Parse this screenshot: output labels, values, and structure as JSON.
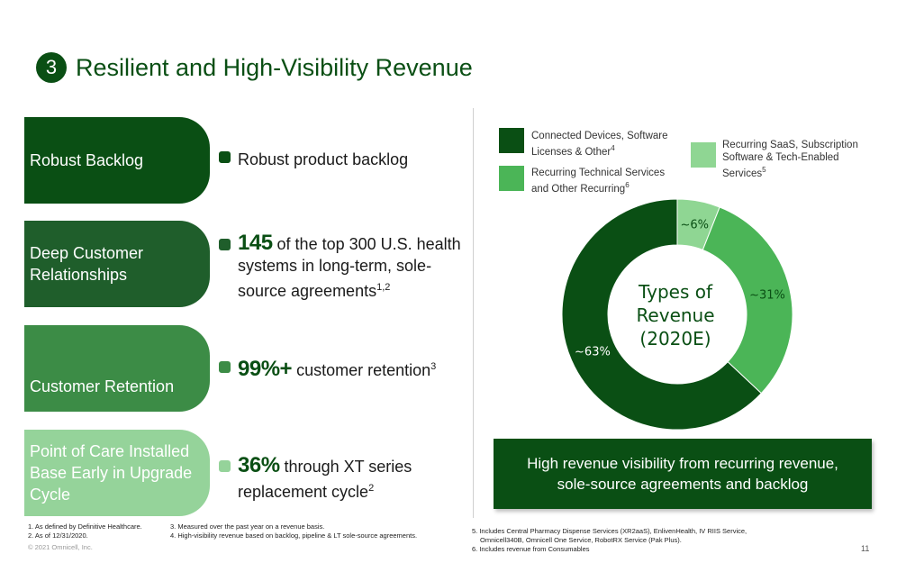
{
  "header": {
    "number": "3",
    "title": "Resilient and High-Visibility Revenue"
  },
  "left_items": [
    {
      "pill_label": "Robust Backlog",
      "pill_color": "#0a4f14",
      "big": "",
      "text": "Robust product backlog",
      "sup": ""
    },
    {
      "pill_label": "Deep Customer Relationships",
      "pill_color": "#1f5e2b",
      "big": "145",
      "text": " of the top 300 U.S. health systems in long-term, sole-source agreements",
      "sup": "1,2"
    },
    {
      "pill_label": "Customer Retention",
      "pill_color": "#3c8c46",
      "big": "99%+",
      "text": " customer retention",
      "sup": "3"
    },
    {
      "pill_label": "Point of Care Installed Base Early in Upgrade Cycle",
      "pill_color": "#95d39a",
      "big": "36%",
      "text": " through XT series replacement cycle",
      "sup": "2"
    }
  ],
  "legend": [
    {
      "label": "Connected Devices, Software Licenses & Other",
      "sup": "4",
      "color": "#0a4f14"
    },
    {
      "label": "Recurring Technical Services and Other Recurring",
      "sup": "6",
      "color": "#4bb557"
    },
    {
      "label": "Recurring SaaS, Subscription Software & Tech-Enabled Services",
      "sup": "5",
      "color": "#8fd693"
    }
  ],
  "chart_data": {
    "type": "pie",
    "title": "Types of Revenue (2020E)",
    "slices": [
      {
        "name": "Recurring SaaS, Subscription Software & Tech-Enabled Services",
        "value": 6,
        "label": "~6%",
        "color": "#8fd693"
      },
      {
        "name": "Recurring Technical Services and Other Recurring",
        "value": 31,
        "label": "~31%",
        "color": "#4bb557"
      },
      {
        "name": "Connected Devices, Software Licenses & Other",
        "value": 63,
        "label": "~63%",
        "color": "#0a4f14"
      }
    ],
    "center_lines": [
      "Types of",
      "Revenue",
      "(2020E)"
    ]
  },
  "callout": {
    "line1": "High revenue visibility from recurring revenue,",
    "line2": "sole-source agreements and backlog"
  },
  "footnotes": {
    "col1": [
      "1.  As defined by Definitive Healthcare.",
      "2.  As of 12/31/2020."
    ],
    "col2": [
      "3. Measured over the past year on a revenue basis.",
      "4. High-visibility revenue based on backlog, pipeline & LT sole-source agreements."
    ],
    "col3": [
      "5. Includes Central Pharmacy Dispense Services (XR2aaS), EnlivenHealth, IV RIIS Service,",
      "Omnicell340B, Omnicell One Service, RobotRX Service (Pak Plus).",
      "6. Includes revenue from Consumables"
    ]
  },
  "copyright": "© 2021 Omnicell, Inc.",
  "page_number": "11"
}
